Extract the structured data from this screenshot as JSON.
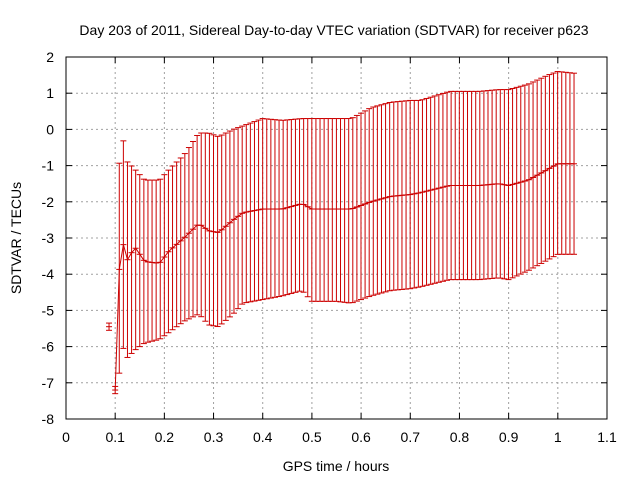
{
  "chart_data": {
    "type": "errorbar",
    "title": "Day 203 of 2011, Sidereal Day-to-day VTEC variation (SDTVAR) for receiver p623",
    "xlabel": "GPS time / hours",
    "ylabel": "SDTVAR / TECUs",
    "xlim": [
      0,
      1.1
    ],
    "ylim": [
      -8,
      2
    ],
    "xticks": [
      0,
      0.1,
      0.2,
      0.3,
      0.4,
      0.5,
      0.6,
      0.7,
      0.8,
      0.9,
      1,
      1.1
    ],
    "xtick_labels": [
      "0",
      "0.1",
      "0.2",
      "0.3",
      "0.4",
      "0.5",
      "0.6",
      "0.7",
      "0.8",
      "0.9",
      "1",
      "1.1"
    ],
    "yticks": [
      -8,
      -7,
      -6,
      -5,
      -4,
      -3,
      -2,
      -1,
      0,
      1,
      2
    ],
    "ytick_labels": [
      "-8",
      "-7",
      "-6",
      "-5",
      "-4",
      "-3",
      "-2",
      "-1",
      "0",
      "1",
      "2"
    ],
    "grid": true,
    "legend": "none",
    "series_color": "#cc0000",
    "series": [
      {
        "name": "SDTVAR",
        "mean_anchors": [
          [
            0.0875,
            -5.45
          ],
          [
            0.1,
            -7.2
          ],
          [
            0.105,
            -4.25
          ],
          [
            0.115,
            -3.1
          ],
          [
            0.125,
            -3.6
          ],
          [
            0.14,
            -3.25
          ],
          [
            0.16,
            -3.65
          ],
          [
            0.19,
            -3.7
          ],
          [
            0.21,
            -3.35
          ],
          [
            0.24,
            -3.0
          ],
          [
            0.27,
            -2.6
          ],
          [
            0.29,
            -2.8
          ],
          [
            0.31,
            -2.85
          ],
          [
            0.34,
            -2.5
          ],
          [
            0.36,
            -2.3
          ],
          [
            0.4,
            -2.2
          ],
          [
            0.44,
            -2.2
          ],
          [
            0.48,
            -2.05
          ],
          [
            0.5,
            -2.2
          ],
          [
            0.55,
            -2.2
          ],
          [
            0.58,
            -2.2
          ],
          [
            0.62,
            -2.0
          ],
          [
            0.66,
            -1.85
          ],
          [
            0.7,
            -1.8
          ],
          [
            0.72,
            -1.75
          ],
          [
            0.78,
            -1.55
          ],
          [
            0.84,
            -1.55
          ],
          [
            0.88,
            -1.5
          ],
          [
            0.9,
            -1.55
          ],
          [
            0.94,
            -1.4
          ],
          [
            0.98,
            -1.1
          ],
          [
            1.0,
            -0.95
          ],
          [
            1.035,
            -0.95
          ]
        ],
        "upper_anchors": [
          [
            0.0875,
            -5.35
          ],
          [
            0.1,
            -7.1
          ],
          [
            0.105,
            -1.3
          ],
          [
            0.115,
            -0.2
          ],
          [
            0.125,
            -0.9
          ],
          [
            0.14,
            -1.1
          ],
          [
            0.16,
            -1.4
          ],
          [
            0.19,
            -1.4
          ],
          [
            0.21,
            -1.1
          ],
          [
            0.24,
            -0.7
          ],
          [
            0.27,
            -0.1
          ],
          [
            0.29,
            -0.1
          ],
          [
            0.31,
            -0.2
          ],
          [
            0.34,
            0.0
          ],
          [
            0.36,
            0.1
          ],
          [
            0.4,
            0.3
          ],
          [
            0.44,
            0.25
          ],
          [
            0.48,
            0.3
          ],
          [
            0.5,
            0.3
          ],
          [
            0.55,
            0.3
          ],
          [
            0.58,
            0.3
          ],
          [
            0.62,
            0.6
          ],
          [
            0.66,
            0.75
          ],
          [
            0.7,
            0.8
          ],
          [
            0.72,
            0.8
          ],
          [
            0.78,
            1.05
          ],
          [
            0.84,
            1.05
          ],
          [
            0.88,
            1.1
          ],
          [
            0.9,
            1.1
          ],
          [
            0.94,
            1.25
          ],
          [
            0.98,
            1.5
          ],
          [
            1.0,
            1.6
          ],
          [
            1.035,
            1.55
          ]
        ],
        "lower_anchors": [
          [
            0.0875,
            -5.55
          ],
          [
            0.1,
            -7.3
          ],
          [
            0.105,
            -7.1
          ],
          [
            0.115,
            -6.0
          ],
          [
            0.125,
            -6.3
          ],
          [
            0.14,
            -6.1
          ],
          [
            0.16,
            -5.9
          ],
          [
            0.19,
            -5.8
          ],
          [
            0.21,
            -5.6
          ],
          [
            0.24,
            -5.3
          ],
          [
            0.27,
            -5.1
          ],
          [
            0.29,
            -5.4
          ],
          [
            0.31,
            -5.45
          ],
          [
            0.34,
            -5.1
          ],
          [
            0.36,
            -4.8
          ],
          [
            0.4,
            -4.7
          ],
          [
            0.44,
            -4.6
          ],
          [
            0.48,
            -4.45
          ],
          [
            0.5,
            -4.75
          ],
          [
            0.55,
            -4.75
          ],
          [
            0.58,
            -4.8
          ],
          [
            0.62,
            -4.6
          ],
          [
            0.66,
            -4.45
          ],
          [
            0.7,
            -4.4
          ],
          [
            0.72,
            -4.35
          ],
          [
            0.78,
            -4.15
          ],
          [
            0.84,
            -4.15
          ],
          [
            0.88,
            -4.1
          ],
          [
            0.9,
            -4.15
          ],
          [
            0.94,
            -3.9
          ],
          [
            0.98,
            -3.6
          ],
          [
            1.0,
            -3.45
          ],
          [
            1.035,
            -3.45
          ]
        ],
        "x_start": 0.1,
        "x_end": 1.035,
        "x_step": 0.00833
      }
    ]
  }
}
